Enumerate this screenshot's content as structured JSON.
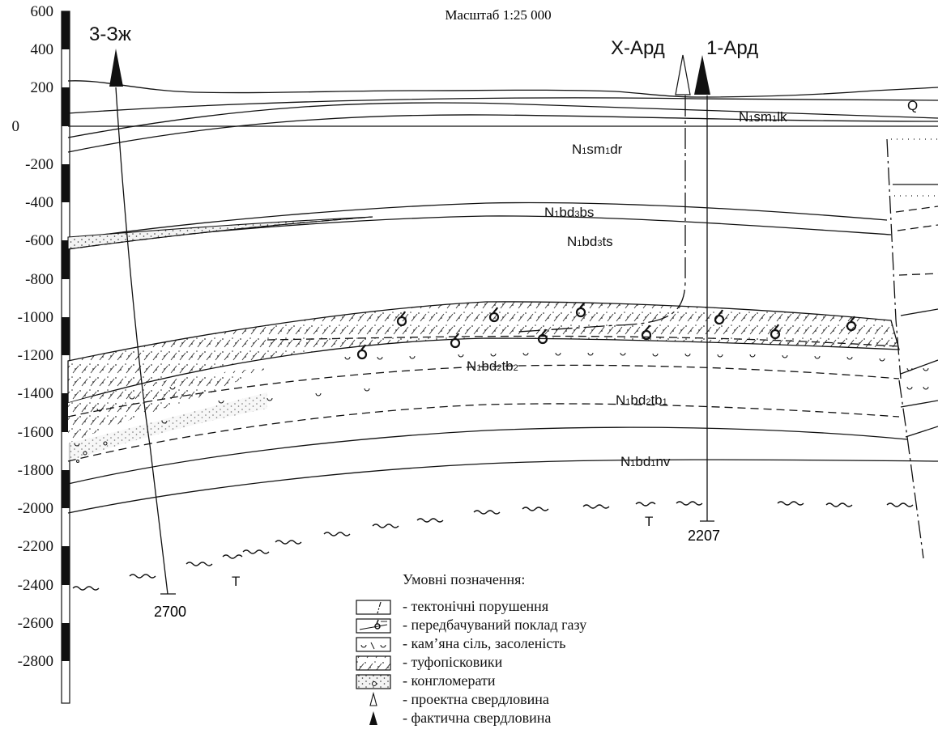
{
  "title": "Масштаб 1:25 000",
  "depth_axis": {
    "ticks": [
      "600",
      "400",
      "200",
      "0",
      "-200",
      "-400",
      "-600",
      "-800",
      "-1000",
      "-1200",
      "-1400",
      "-1600",
      "-1800",
      "-2000",
      "-2200",
      "-2400",
      "-2600",
      "-2800"
    ]
  },
  "wells": {
    "w3": {
      "name": "3-Зж",
      "depth": "2700",
      "type": "фактична"
    },
    "wX": {
      "name": "Х-Ард",
      "type": "проектна"
    },
    "w1": {
      "name": "1-Ард",
      "depth": "2207",
      "type": "фактична"
    }
  },
  "units": {
    "Q": "Q",
    "sm1lk": {
      "a": "N",
      "b": "1",
      "c": "sm",
      "d": "1",
      "e": "lk"
    },
    "sm1dr": {
      "a": "N",
      "b": "1",
      "c": "sm",
      "d": "1",
      "e": "dr"
    },
    "bd3bs": {
      "a": "N",
      "b": "1",
      "c": "bd",
      "d": "3",
      "e": "bs"
    },
    "bd3ts": {
      "a": "N",
      "b": "1",
      "c": "bd",
      "d": "3",
      "e": "ts"
    },
    "bd2tb2": {
      "a": "N",
      "b": "1",
      "c": "bd",
      "d": "2",
      "e": "tb",
      "f": "2"
    },
    "bd2tb1": {
      "a": "N",
      "b": "1",
      "c": "bd",
      "d": "2",
      "e": "tb",
      "f": "1"
    },
    "bd1nv": {
      "a": "N",
      "b": "1",
      "c": "bd",
      "d": "1",
      "e": "nv"
    },
    "T1": "T",
    "T2": "T"
  },
  "legend": {
    "title": "Умовні позначення:",
    "items": [
      "- тектонічні порушення",
      "- передбачуваний поклад газу",
      "- кам’яна сіль, засоленість",
      "- туфопісковики",
      "- конгломерати",
      "- проектна свердловина",
      "- фактична свердловина"
    ]
  }
}
